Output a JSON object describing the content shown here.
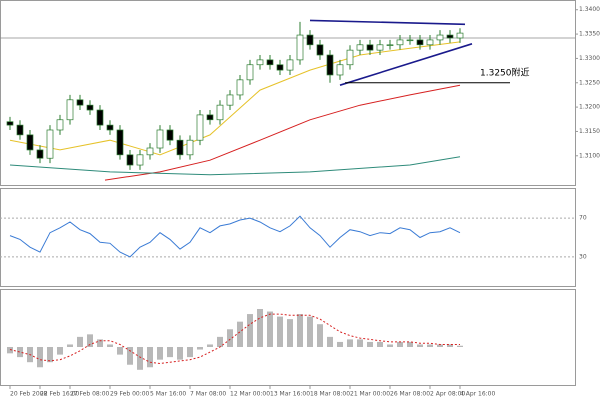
{
  "chart_data": [
    {
      "type": "candlestick",
      "up_color": "#ffffff",
      "down_color": "#000000",
      "wick_color": "#2e7d32",
      "open": [
        1.317,
        1.3163,
        1.3143,
        1.3112,
        1.3095,
        1.3153,
        1.3174,
        1.3215,
        1.3204,
        1.3194,
        1.3163,
        1.3153,
        1.3102,
        1.3081,
        1.3102,
        1.3116,
        1.3153,
        1.3132,
        1.3102,
        1.3132,
        1.3184,
        1.3174,
        1.3204,
        1.3225,
        1.3256,
        1.3287,
        1.3297,
        1.3287,
        1.3276,
        1.3297,
        1.3348,
        1.3328,
        1.3307,
        1.3266,
        1.3287,
        1.3317,
        1.3328,
        1.3317,
        1.3328,
        1.3328,
        1.3338,
        1.3338,
        1.3328,
        1.3338,
        1.3348,
        1.3342
      ],
      "high": [
        1.318,
        1.3173,
        1.3153,
        1.3122,
        1.3163,
        1.3184,
        1.3225,
        1.3225,
        1.3214,
        1.3204,
        1.3173,
        1.3163,
        1.3112,
        1.3112,
        1.3126,
        1.3163,
        1.3163,
        1.3142,
        1.3142,
        1.3194,
        1.3194,
        1.3214,
        1.3235,
        1.3266,
        1.3297,
        1.3307,
        1.3307,
        1.3297,
        1.3307,
        1.3375,
        1.3358,
        1.3338,
        1.3317,
        1.3297,
        1.3327,
        1.3338,
        1.3338,
        1.3338,
        1.3338,
        1.3348,
        1.3348,
        1.3348,
        1.3348,
        1.3358,
        1.3358,
        1.3362
      ],
      "low": [
        1.3153,
        1.3133,
        1.3102,
        1.3085,
        1.3085,
        1.3143,
        1.3164,
        1.3194,
        1.3184,
        1.3153,
        1.3143,
        1.3092,
        1.3071,
        1.3071,
        1.3092,
        1.3106,
        1.3122,
        1.3092,
        1.3092,
        1.3122,
        1.3164,
        1.3164,
        1.3194,
        1.3215,
        1.3246,
        1.3277,
        1.3277,
        1.3266,
        1.3266,
        1.3287,
        1.3318,
        1.3297,
        1.325,
        1.3256,
        1.3277,
        1.3307,
        1.3307,
        1.3307,
        1.3318,
        1.3318,
        1.3328,
        1.3318,
        1.3318,
        1.3328,
        1.3332,
        1.3332
      ],
      "close": [
        1.3163,
        1.3143,
        1.3112,
        1.3095,
        1.3153,
        1.3174,
        1.3215,
        1.3204,
        1.3194,
        1.3163,
        1.3153,
        1.3102,
        1.3081,
        1.3102,
        1.3116,
        1.3153,
        1.3132,
        1.3102,
        1.3132,
        1.3184,
        1.3174,
        1.3204,
        1.3225,
        1.3256,
        1.3287,
        1.3297,
        1.3287,
        1.3276,
        1.3297,
        1.3348,
        1.3328,
        1.3307,
        1.3266,
        1.3287,
        1.3317,
        1.3328,
        1.3317,
        1.3328,
        1.3328,
        1.3338,
        1.3338,
        1.3328,
        1.3338,
        1.3348,
        1.3342,
        1.3352
      ],
      "moving_averages": [
        {
          "color": "#e6c229",
          "x": [
            0,
            5,
            10,
            15,
            20,
            25,
            30,
            35,
            40,
            45
          ],
          "values": [
            1.3132,
            1.3112,
            1.3132,
            1.3102,
            1.3143,
            1.3235,
            1.3276,
            1.3307,
            1.3321,
            1.3334
          ]
        },
        {
          "color": "#d62020",
          "x": [
            9.5,
            15,
            20,
            25,
            30,
            35,
            40,
            45
          ],
          "values": [
            1.305,
            1.3067,
            1.3091,
            1.3132,
            1.3174,
            1.3204,
            1.3225,
            1.3245
          ]
        },
        {
          "color": "#2e8b7a",
          "x": [
            0,
            10,
            20,
            30,
            40,
            45
          ],
          "values": [
            1.3081,
            1.3067,
            1.3061,
            1.3067,
            1.3081,
            1.3098
          ]
        }
      ],
      "trendlines": [
        {
          "color": "#1a1a8c",
          "x": [
            30,
            45.5
          ],
          "values": [
            1.3378,
            1.337
          ]
        },
        {
          "color": "#1a1a8c",
          "x": [
            33,
            46.2
          ],
          "values": [
            1.3245,
            1.333
          ]
        },
        {
          "color": "#000000",
          "x": [
            33.5,
            50
          ],
          "values": [
            1.325,
            1.325
          ]
        }
      ],
      "current_price": 1.3342,
      "annotation": "1.3250附近",
      "ylim": [
        1.304,
        1.342
      ],
      "yticks": [
        {
          "value": 1.31,
          "label": "1.3100"
        },
        {
          "value": 1.315,
          "label": "1.3150"
        },
        {
          "value": 1.32,
          "label": "1.3200"
        },
        {
          "value": 1.325,
          "label": "1.3250"
        },
        {
          "value": 1.33,
          "label": "1.3300"
        },
        {
          "value": 1.335,
          "label": "1.3350"
        },
        {
          "value": 1.34,
          "label": "1.3400"
        }
      ],
      "xticks": [
        {
          "value": 0,
          "label": "20 Feb 2008"
        },
        {
          "value": 3,
          "label": "22 Feb 16:00"
        },
        {
          "value": 6,
          "label": "27 Feb 08:00"
        },
        {
          "value": 10,
          "label": "29 Feb 00:00"
        },
        {
          "value": 14,
          "label": "5 Mar 16:00"
        },
        {
          "value": 18,
          "label": "7 Mar 08:00"
        },
        {
          "value": 22,
          "label": "12 Mar 00:00"
        },
        {
          "value": 26,
          "label": "13 Mar 16:00"
        },
        {
          "value": 30,
          "label": "18 Mar 08:00"
        },
        {
          "value": 34,
          "label": "21 Mar 00:00"
        },
        {
          "value": 38,
          "label": "26 Mar 08:00"
        },
        {
          "value": 42,
          "label": "2 Apr 08:00"
        },
        {
          "value": 45,
          "label": "4 Apr 16:00"
        }
      ]
    },
    {
      "type": "line",
      "color": "#3a7bd5",
      "values": [
        52,
        48,
        40,
        35,
        55,
        60,
        66,
        58,
        54,
        45,
        44,
        35,
        30,
        40,
        45,
        55,
        48,
        38,
        45,
        60,
        55,
        62,
        64,
        68,
        70,
        66,
        60,
        56,
        62,
        72,
        60,
        52,
        40,
        50,
        58,
        56,
        52,
        55,
        54,
        60,
        58,
        50,
        55,
        56,
        60,
        55
      ],
      "ylim": [
        0,
        100
      ],
      "yticks": [
        30,
        70
      ]
    },
    {
      "type": "macd",
      "histogram": {
        "color": "#b8b8b8",
        "values": [
          -0.0005,
          -0.0008,
          -0.0012,
          -0.0016,
          -0.0012,
          -0.0006,
          0.0002,
          0.0008,
          0.001,
          0.0006,
          0.0002,
          -0.0006,
          -0.0014,
          -0.0018,
          -0.0016,
          -0.001,
          -0.0008,
          -0.001,
          -0.0008,
          -0.0002,
          0.0002,
          0.0008,
          0.0014,
          0.002,
          0.0026,
          0.003,
          0.0028,
          0.0024,
          0.0022,
          0.0026,
          0.0024,
          0.0018,
          0.0008,
          0.0004,
          0.0006,
          0.0006,
          0.0004,
          0.0004,
          0.0002,
          0.0004,
          0.0004,
          0.0002,
          0.0002,
          0.0002,
          0.0002,
          0.0001
        ]
      },
      "signal": {
        "color": "#d62020",
        "values": [
          -0.0002,
          -0.0004,
          -0.0006,
          -0.001,
          -0.0011,
          -0.001,
          -0.0007,
          -0.0003,
          0.0002,
          0.0005,
          0.0005,
          0.0002,
          -0.0003,
          -0.0008,
          -0.0012,
          -0.0013,
          -0.0012,
          -0.0011,
          -0.001,
          -0.0008,
          -0.0004,
          0,
          0.0006,
          0.0012,
          0.0018,
          0.0023,
          0.0026,
          0.0026,
          0.0025,
          0.0025,
          0.0025,
          0.0022,
          0.0017,
          0.0012,
          0.0009,
          0.0007,
          0.0006,
          0.0005,
          0.0004,
          0.0004,
          0.0004,
          0.0003,
          0.0003,
          0.0002,
          0.0002,
          0.0002
        ]
      },
      "ylim": [
        -0.003,
        0.0045
      ]
    }
  ]
}
